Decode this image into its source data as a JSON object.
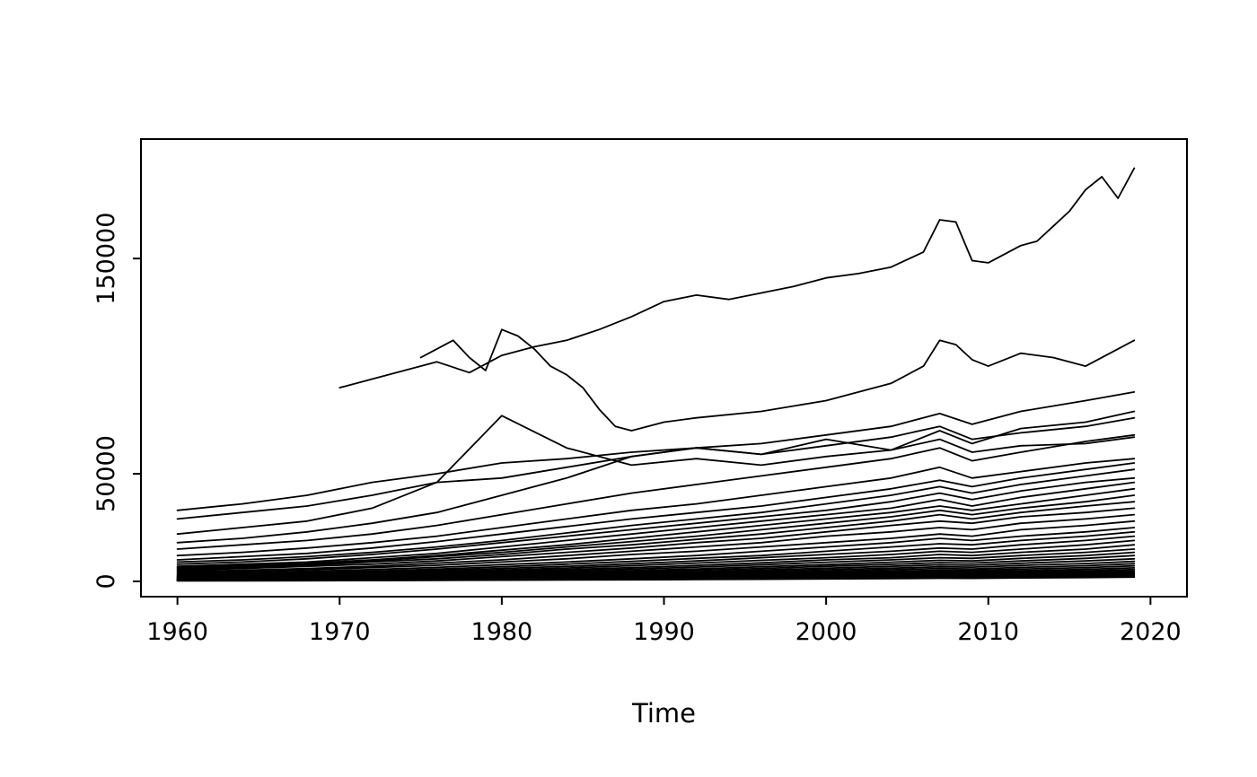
{
  "figure": {
    "background": "#ffffff",
    "line_color": "#000000",
    "axis_color": "#000000",
    "text_color": "#000000"
  },
  "chart_data": {
    "type": "line",
    "title": "",
    "xlabel": "Time",
    "ylabel": "",
    "legend": "none",
    "grid": false,
    "xlim": [
      1957.75,
      2022.25
    ],
    "ylim": [
      -7100,
      205500
    ],
    "x_ticks": [
      1960,
      1970,
      1980,
      1990,
      2000,
      2010,
      2020
    ],
    "x_tick_labels": [
      "1960",
      "1970",
      "1980",
      "1990",
      "2000",
      "2010",
      "2020"
    ],
    "y_ticks": [
      0,
      50000,
      150000
    ],
    "y_tick_labels": [
      "0",
      "50000",
      "150000"
    ],
    "x_default": [
      1960,
      1964,
      1968,
      1972,
      1976,
      1980,
      1984,
      1988,
      1992,
      1996,
      2000,
      2004,
      2007,
      2009,
      2012,
      2016,
      2019
    ],
    "series": [
      {
        "x": [
          1970,
          1972,
          1974,
          1976,
          1978,
          1980,
          1982,
          1984,
          1986,
          1988,
          1990,
          1992,
          1994,
          1996,
          1998,
          2000,
          2002,
          2004,
          2006,
          2007,
          2008,
          2009,
          2010,
          2011,
          2012,
          2013,
          2014,
          2015,
          2016,
          2017,
          2018,
          2019
        ],
        "y": [
          90000,
          94000,
          98000,
          102000,
          97000,
          105000,
          109000,
          112000,
          117000,
          123000,
          130000,
          133000,
          131000,
          134000,
          137000,
          141000,
          143000,
          146000,
          153000,
          168000,
          167000,
          149000,
          148000,
          152000,
          156000,
          158000,
          165000,
          172000,
          182000,
          188000,
          178000,
          192000
        ]
      },
      {
        "x": [
          1975,
          1976,
          1977,
          1978,
          1979,
          1980,
          1981,
          1982,
          1983,
          1984,
          1985,
          1986,
          1987,
          1988,
          1990,
          1992,
          1996,
          2000,
          2004,
          2006,
          2007,
          2008,
          2009,
          2010,
          2012,
          2014,
          2016,
          2018,
          2019
        ],
        "y": [
          104000,
          108000,
          112000,
          104000,
          98000,
          117000,
          114000,
          108000,
          100000,
          96000,
          90000,
          80000,
          72000,
          70000,
          74000,
          76000,
          79000,
          84000,
          92000,
          100000,
          112000,
          110000,
          103000,
          100000,
          106000,
          104000,
          100000,
          108000,
          112000
        ]
      },
      {
        "y": [
          33000,
          36000,
          40000,
          46000,
          50000,
          55000,
          57000,
          60000,
          62000,
          64000,
          68000,
          72000,
          78000,
          73000,
          79000,
          84000,
          88000
        ]
      },
      {
        "y": [
          29000,
          32000,
          35000,
          40000,
          46000,
          48000,
          53000,
          58000,
          62000,
          59000,
          63000,
          67000,
          72000,
          66000,
          69000,
          72000,
          76000
        ]
      },
      {
        "y": [
          22000,
          25000,
          28000,
          34000,
          46000,
          77000,
          62000,
          54000,
          57000,
          54000,
          58000,
          61000,
          66000,
          60000,
          63000,
          64000,
          67000
        ]
      },
      {
        "y": [
          18000,
          20000,
          23000,
          27000,
          32000,
          40000,
          48000,
          58000,
          62000,
          59000,
          66000,
          61000,
          70000,
          64000,
          71000,
          74000,
          79000
        ]
      },
      {
        "y": [
          15000,
          17000,
          19000,
          22000,
          26000,
          31000,
          36000,
          41000,
          45000,
          49000,
          53000,
          57000,
          62000,
          56000,
          60000,
          65000,
          68000
        ]
      },
      {
        "y": [
          12000,
          13500,
          15500,
          18000,
          21000,
          25000,
          29000,
          33000,
          36000,
          40000,
          44000,
          48000,
          53000,
          48000,
          51000,
          55000,
          57000
        ]
      },
      {
        "y": [
          10000,
          11500,
          13000,
          15500,
          18500,
          22000,
          25500,
          29000,
          32000,
          35000,
          39000,
          43000,
          47000,
          44000,
          48000,
          52000,
          55000
        ]
      },
      {
        "y": [
          9000,
          10000,
          11500,
          13500,
          16000,
          19000,
          22500,
          26000,
          29000,
          32000,
          36000,
          40000,
          44000,
          41000,
          45000,
          49000,
          52000
        ]
      },
      {
        "y": [
          8000,
          9000,
          10500,
          12500,
          15000,
          18000,
          21000,
          24000,
          27000,
          30000,
          33000,
          37000,
          41000,
          38000,
          42000,
          46000,
          48000
        ]
      },
      {
        "y": [
          7000,
          8000,
          9000,
          11000,
          13000,
          16000,
          19000,
          22000,
          25000,
          28000,
          31000,
          34000,
          38000,
          35000,
          39000,
          43000,
          46000
        ]
      },
      {
        "y": [
          6500,
          7500,
          8500,
          10000,
          12000,
          14500,
          17000,
          20000,
          23000,
          26000,
          29000,
          32000,
          35000,
          33000,
          36000,
          40000,
          43000
        ]
      },
      {
        "y": [
          6000,
          7000,
          8000,
          9500,
          11500,
          13500,
          16000,
          18500,
          21000,
          24000,
          27000,
          30000,
          33000,
          31000,
          34000,
          37000,
          40000
        ]
      },
      {
        "y": [
          5500,
          6500,
          7500,
          9000,
          10500,
          12500,
          15000,
          17000,
          19500,
          22000,
          25000,
          28000,
          31000,
          29000,
          32000,
          35000,
          37000
        ]
      },
      {
        "y": [
          5000,
          6000,
          7000,
          8000,
          9500,
          11500,
          13500,
          15500,
          18000,
          20000,
          23000,
          26000,
          28000,
          27000,
          30000,
          32000,
          34000
        ]
      },
      {
        "y": [
          4500,
          5200,
          6000,
          7000,
          8500,
          10000,
          12000,
          14000,
          16000,
          18000,
          21000,
          23000,
          25000,
          24000,
          27000,
          29000,
          31000
        ]
      },
      {
        "y": [
          4000,
          4600,
          5400,
          6400,
          7500,
          9000,
          10500,
          12500,
          14000,
          16000,
          18000,
          20000,
          22000,
          21000,
          24000,
          26000,
          28000
        ]
      },
      {
        "y": [
          3500,
          4000,
          4700,
          5500,
          6500,
          7800,
          9000,
          10500,
          12000,
          14000,
          16000,
          18000,
          20000,
          19000,
          21000,
          23000,
          25000
        ]
      },
      {
        "y": [
          3000,
          3500,
          4100,
          4800,
          5700,
          6800,
          8000,
          9300,
          10700,
          12000,
          14000,
          16000,
          17500,
          17000,
          19000,
          21000,
          23000
        ]
      },
      {
        "y": [
          2700,
          3100,
          3600,
          4300,
          5100,
          6000,
          7000,
          8200,
          9500,
          11000,
          12500,
          14000,
          15500,
          15000,
          17000,
          19000,
          21000
        ]
      },
      {
        "y": [
          2400,
          2800,
          3200,
          3800,
          4500,
          5300,
          6200,
          7300,
          8500,
          9800,
          11000,
          12500,
          14000,
          13500,
          15000,
          17000,
          19000
        ]
      },
      {
        "y": [
          2100,
          2400,
          2800,
          3300,
          3900,
          4700,
          5500,
          6400,
          7400,
          8600,
          10000,
          11000,
          12500,
          12000,
          13500,
          15000,
          17000
        ]
      },
      {
        "y": [
          1900,
          2200,
          2500,
          3000,
          3500,
          4200,
          4900,
          5700,
          6600,
          7700,
          8900,
          10000,
          11000,
          10700,
          12000,
          13500,
          15000
        ]
      },
      {
        "y": [
          1700,
          1950,
          2250,
          2650,
          3100,
          3700,
          4300,
          5000,
          5800,
          6800,
          7800,
          8900,
          9800,
          9500,
          10700,
          12000,
          13500
        ]
      },
      {
        "y": [
          1500,
          1700,
          2000,
          2350,
          2750,
          3250,
          3800,
          4450,
          5200,
          6000,
          7000,
          7900,
          8700,
          8500,
          9500,
          10700,
          12000
        ]
      },
      {
        "y": [
          1300,
          1500,
          1750,
          2050,
          2400,
          2850,
          3350,
          3900,
          4550,
          5300,
          6100,
          7000,
          7700,
          7500,
          8400,
          9500,
          10500
        ]
      },
      {
        "y": [
          1150,
          1300,
          1550,
          1800,
          2100,
          2500,
          2950,
          3450,
          4000,
          4650,
          5400,
          6100,
          6800,
          6600,
          7400,
          8300,
          9300
        ]
      },
      {
        "y": [
          1000,
          1150,
          1350,
          1600,
          1850,
          2200,
          2600,
          3000,
          3500,
          4100,
          4700,
          5400,
          6000,
          5800,
          6500,
          7300,
          8200
        ]
      },
      {
        "y": [
          900,
          1000,
          1200,
          1400,
          1650,
          1950,
          2250,
          2650,
          3100,
          3600,
          4100,
          4700,
          5200,
          5100,
          5700,
          6400,
          7200
        ]
      },
      {
        "y": [
          780,
          900,
          1050,
          1250,
          1450,
          1700,
          2000,
          2300,
          2700,
          3150,
          3650,
          4150,
          4600,
          4500,
          5000,
          5600,
          6300
        ]
      },
      {
        "y": [
          680,
          780,
          900,
          1050,
          1250,
          1500,
          1750,
          2050,
          2400,
          2750,
          3200,
          3600,
          4000,
          3900,
          4400,
          4900,
          5500
        ]
      },
      {
        "y": [
          600,
          700,
          800,
          950,
          1100,
          1300,
          1500,
          1750,
          2050,
          2400,
          2750,
          3150,
          3500,
          3400,
          3800,
          4300,
          4800
        ]
      },
      {
        "y": [
          520,
          600,
          700,
          820,
          960,
          1120,
          1300,
          1520,
          1780,
          2080,
          2400,
          2750,
          3050,
          3000,
          3350,
          3750,
          4200
        ]
      },
      {
        "y": [
          450,
          520,
          600,
          700,
          820,
          960,
          1120,
          1300,
          1520,
          1780,
          2050,
          2350,
          2600,
          2550,
          2850,
          3200,
          3600
        ]
      },
      {
        "y": [
          380,
          440,
          510,
          600,
          700,
          820,
          950,
          1100,
          1300,
          1500,
          1750,
          2000,
          2200,
          2150,
          2400,
          2700,
          3000
        ]
      },
      {
        "y": [
          300,
          350,
          410,
          480,
          560,
          650,
          760,
          890,
          1040,
          1200,
          1400,
          1600,
          1750,
          1700,
          1900,
          2150,
          2400
        ]
      },
      {
        "y": [
          250,
          290,
          340,
          400,
          470,
          550,
          640,
          750,
          870,
          1000,
          1150,
          1300,
          1450,
          1400,
          1600,
          1800,
          2000
        ]
      }
    ]
  }
}
